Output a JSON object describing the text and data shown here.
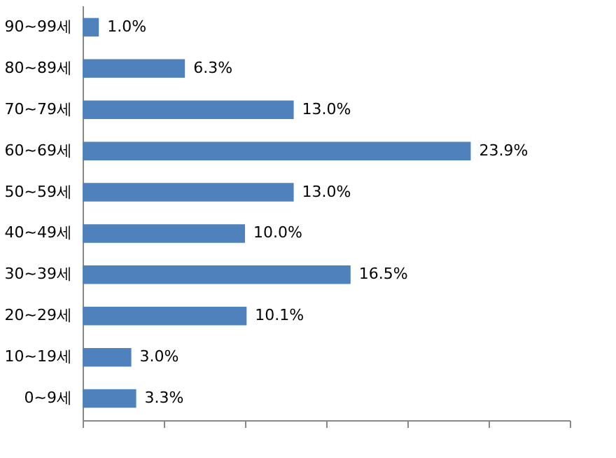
{
  "chart_data": {
    "type": "bar",
    "orientation": "horizontal",
    "categories": [
      "90~99세",
      "80~89세",
      "70~79세",
      "60~69세",
      "50~59세",
      "40~49세",
      "30~39세",
      "20~29세",
      "10~19세",
      "0~9세"
    ],
    "values": [
      1.0,
      6.3,
      13.0,
      23.9,
      13.0,
      10.0,
      16.5,
      10.1,
      3.0,
      3.3
    ],
    "value_labels": [
      "1.0%",
      "6.3%",
      "13.0%",
      "23.9%",
      "13.0%",
      "10.0%",
      "16.5%",
      "10.1%",
      "3.0%",
      "3.3%"
    ],
    "color": "#4f81bd",
    "xlim": [
      0,
      30
    ],
    "xticks": [
      {
        "value": 0,
        "label": null
      },
      {
        "value": 5,
        "label": null
      },
      {
        "value": 10,
        "label": null
      },
      {
        "value": 15,
        "label": null
      },
      {
        "value": 20,
        "label": null
      },
      {
        "value": 25,
        "label": null
      },
      {
        "value": 30,
        "label": null
      }
    ],
    "tick_labels": "y",
    "grid": false
  }
}
